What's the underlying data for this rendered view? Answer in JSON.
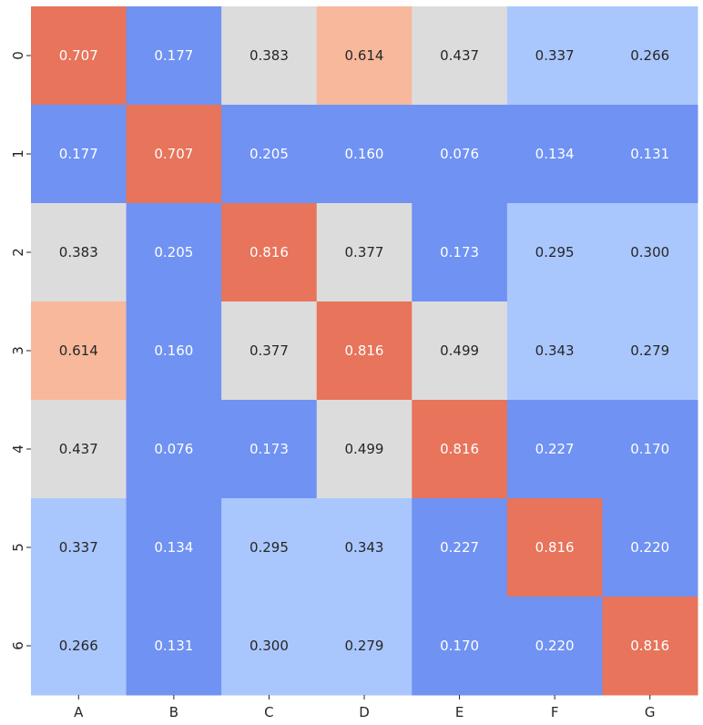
{
  "chart_data": {
    "type": "heatmap",
    "title": "",
    "xlabel": "",
    "ylabel": "",
    "x_categories": [
      "A",
      "B",
      "C",
      "D",
      "E",
      "F",
      "G"
    ],
    "y_categories": [
      "0",
      "1",
      "2",
      "3",
      "4",
      "5",
      "6"
    ],
    "values": [
      [
        0.707,
        0.177,
        0.383,
        0.614,
        0.437,
        0.337,
        0.266
      ],
      [
        0.177,
        0.707,
        0.205,
        0.16,
        0.076,
        0.134,
        0.131
      ],
      [
        0.383,
        0.205,
        0.816,
        0.377,
        0.173,
        0.295,
        0.3
      ],
      [
        0.614,
        0.16,
        0.377,
        0.816,
        0.499,
        0.343,
        0.279
      ],
      [
        0.437,
        0.076,
        0.173,
        0.499,
        0.816,
        0.227,
        0.17
      ],
      [
        0.337,
        0.134,
        0.295,
        0.343,
        0.227,
        0.816,
        0.22
      ],
      [
        0.266,
        0.131,
        0.3,
        0.279,
        0.17,
        0.22,
        0.816
      ]
    ],
    "value_format": "0.000",
    "colormap": "coolwarm (binned)",
    "color_bins": [
      {
        "min": 0.0,
        "max": 0.25,
        "color": "#6f92f3",
        "text_color": "#ffffff"
      },
      {
        "min": 0.25,
        "max": 0.35,
        "color": "#aac7fd",
        "text_color": "#262626"
      },
      {
        "min": 0.35,
        "max": 0.55,
        "color": "#dddcdc",
        "text_color": "#262626"
      },
      {
        "min": 0.55,
        "max": 0.65,
        "color": "#f7b89c",
        "text_color": "#262626"
      },
      {
        "min": 0.65,
        "max": 1.0,
        "color": "#e7745b",
        "text_color": "#ffffff"
      }
    ],
    "legend": "none",
    "grid": false
  }
}
